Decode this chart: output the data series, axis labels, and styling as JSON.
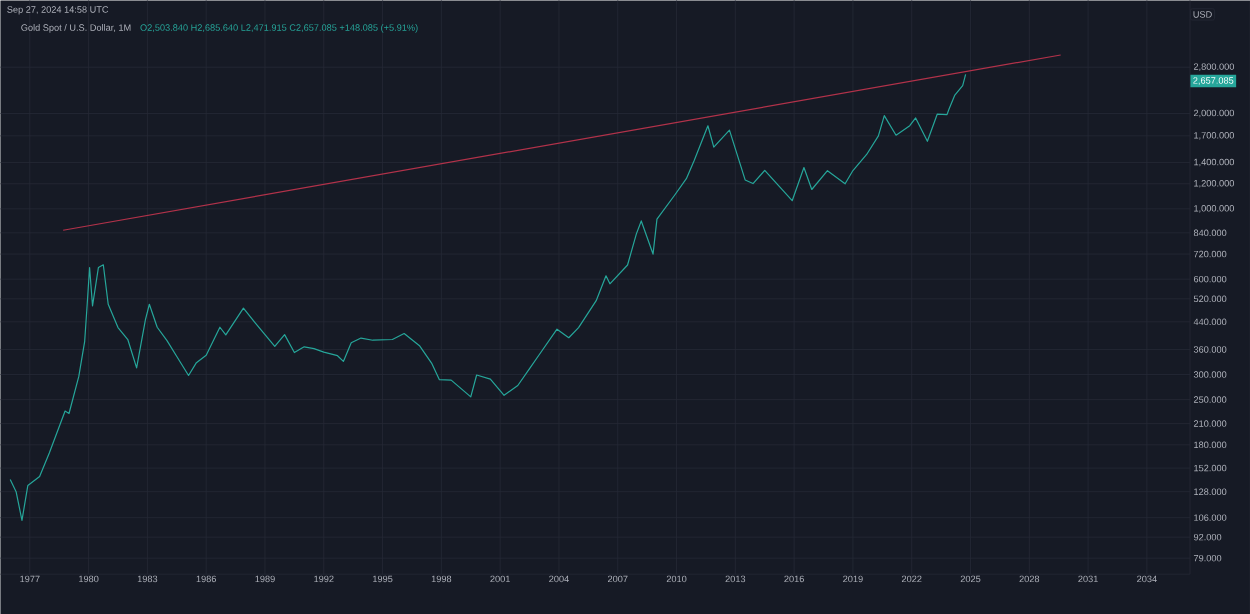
{
  "chart_data": {
    "type": "line",
    "title": "Gold Spot / U.S. Dollar, 1M",
    "ylabel": "USD",
    "annotations": [
      "Sep 27, 2024 14:58 UTC",
      "O2,503.840 H2,685.640 L2,471.915 C2,657.085 +148.085 (+5.91%)",
      "2,657.085"
    ],
    "series": [
      {
        "color": "#26a69a",
        "x": [
          1976.0,
          1976.3,
          1976.6,
          1976.9,
          1977.5,
          1978.0,
          1978.8,
          1979.0,
          1979.5,
          1979.8,
          1979.95,
          1980.05,
          1980.2,
          1980.5,
          1980.75,
          1981.0,
          1981.5,
          1982.0,
          1982.45,
          1982.9,
          1983.1,
          1983.5,
          1984.0,
          1984.5,
          1985.1,
          1985.5,
          1986.0,
          1986.7,
          1987.0,
          1987.9,
          1988.5,
          1989.0,
          1989.5,
          1990.0,
          1990.5,
          1991.0,
          1991.5,
          1992.0,
          1992.7,
          1993.0,
          1993.4,
          1993.9,
          1994.5,
          1995.5,
          1996.1,
          1996.9,
          1997.5,
          1997.9,
          1998.5,
          1999.5,
          1999.8,
          2000.5,
          2001.2,
          2001.9,
          2002.5,
          2003.0,
          2003.9,
          2004.5,
          2005.0,
          2005.9,
          2006.4,
          2006.6,
          2007.5,
          2007.95,
          2008.2,
          2008.8,
          2009.0,
          2009.9,
          2010.5,
          2010.9,
          2011.6,
          2011.9,
          2012.7,
          2013.5,
          2013.9,
          2014.5,
          2015.9,
          2016.5,
          2016.9,
          2017.7,
          2018.6,
          2019.0,
          2019.7,
          2020.3,
          2020.6,
          2021.2,
          2021.9,
          2022.2,
          2022.8,
          2023.3,
          2023.8,
          2023.9,
          2024.2,
          2024.6,
          2024.75
        ],
        "values": [
          140,
          128,
          104,
          134,
          143,
          170,
          230,
          226,
          296,
          382,
          524,
          653,
          494,
          653,
          666,
          500,
          422,
          387,
          315,
          447,
          500,
          423,
          384,
          342,
          298,
          327,
          345,
          423,
          400,
          486,
          437,
          401,
          368,
          401,
          352,
          367,
          362,
          353,
          344,
          330,
          378,
          391,
          385,
          387,
          404,
          369,
          326,
          289,
          288,
          255,
          299,
          290,
          258,
          277,
          313,
          347,
          417,
          392,
          422,
          513,
          615,
          580,
          665,
          834,
          916,
          720,
          928,
          1104,
          1245,
          1421,
          1829,
          1566,
          1772,
          1234,
          1202,
          1322,
          1061,
          1350,
          1151,
          1320,
          1200,
          1321,
          1485,
          1700,
          1969,
          1708,
          1830,
          1937,
          1634,
          1990,
          1983,
          2063,
          2286,
          2447,
          2657.085
        ]
      },
      {
        "type": "line",
        "color": "#b2324a",
        "x": [
          1978.7,
          2029.6
        ],
        "values": [
          856,
          3060
        ]
      }
    ],
    "log": "y",
    "grid": true,
    "xlim": [
      1975.5,
      2036.2
    ],
    "ylim": [
      70.3,
      4550
    ],
    "xticks": [
      1977,
      1980,
      1983,
      1986,
      1989,
      1992,
      1995,
      1998,
      2001,
      2004,
      2007,
      2010,
      2013,
      2016,
      2019,
      2022,
      2025,
      2028,
      2031,
      2034
    ],
    "yticks": [
      {
        "value": 79,
        "label": "79.000"
      },
      {
        "value": 92,
        "label": "92.000"
      },
      {
        "value": 106,
        "label": "106.000"
      },
      {
        "value": 128,
        "label": "128.000"
      },
      {
        "value": 152,
        "label": "152.000"
      },
      {
        "value": 180,
        "label": "180.000"
      },
      {
        "value": 210,
        "label": "210.000"
      },
      {
        "value": 250,
        "label": "250.000"
      },
      {
        "value": 300,
        "label": "300.000"
      },
      {
        "value": 360,
        "label": "360.000"
      },
      {
        "value": 440,
        "label": "440.000"
      },
      {
        "value": 520,
        "label": "520.000"
      },
      {
        "value": 600,
        "label": "600.000"
      },
      {
        "value": 720,
        "label": "720.000"
      },
      {
        "value": 840,
        "label": "840.000"
      },
      {
        "value": 1000,
        "label": "1,000.000"
      },
      {
        "value": 1200,
        "label": "1,200.000"
      },
      {
        "value": 1400,
        "label": "1,400.000"
      },
      {
        "value": 1700,
        "label": "1,700.000"
      },
      {
        "value": 2000,
        "label": "2,000.000"
      },
      {
        "value": 2800,
        "label": "2,800.000"
      }
    ]
  }
}
